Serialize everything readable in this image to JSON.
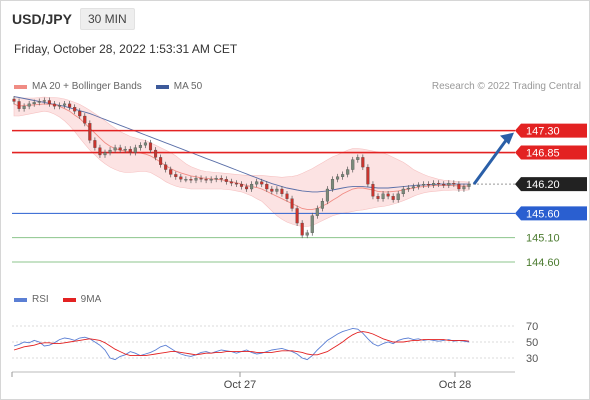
{
  "header": {
    "symbol": "USD/JPY",
    "timeframe": "30 MIN",
    "datetime": "Friday, October 28, 2022 1:53:31 AM CET"
  },
  "legend_top": [
    {
      "label": "MA 20 + Bollinger Bands",
      "color": "#f08c84"
    },
    {
      "label": "MA 50",
      "color": "#3d5a9a"
    }
  ],
  "legend_bottom": [
    {
      "label": "RSI",
      "color": "#5b7fd4"
    },
    {
      "label": "9MA",
      "color": "#e32222"
    }
  ],
  "credit": "Research © 2022 Trading Central",
  "colors": {
    "resistance": "#e32222",
    "support": "#2a5fd0",
    "target": "#8cc48c",
    "arrow": "#2a5fa8",
    "up": "#7a8a7a",
    "down": "#c8342e"
  },
  "chart_data": [
    {
      "type": "candlestick",
      "title": "",
      "xlabel": "",
      "ylabel": "",
      "ylim": [
        144.25,
        147.95
      ],
      "x_tick_labels": [
        "Oct 27",
        "Oct 28"
      ],
      "levels": [
        {
          "label": "147.30",
          "value": 147.3,
          "kind": "resistance"
        },
        {
          "label": "146.85",
          "value": 146.85,
          "kind": "resistance"
        },
        {
          "label": "146.20",
          "value": 146.2,
          "kind": "current"
        },
        {
          "label": "145.60",
          "value": 145.6,
          "kind": "support"
        },
        {
          "label": "145.10",
          "value": 145.1,
          "kind": "target"
        },
        {
          "label": "144.60",
          "value": 144.6,
          "kind": "target"
        }
      ],
      "forecast_arrow": {
        "from": 146.2,
        "to": 147.3
      },
      "closes": [
        147.9,
        147.75,
        147.8,
        147.85,
        147.88,
        147.9,
        147.92,
        147.85,
        147.8,
        147.82,
        147.85,
        147.78,
        147.7,
        147.6,
        147.45,
        147.1,
        146.95,
        146.8,
        146.85,
        146.9,
        146.95,
        146.9,
        146.92,
        146.85,
        146.95,
        147.0,
        147.05,
        146.9,
        146.75,
        146.6,
        146.5,
        146.4,
        146.35,
        146.3,
        146.3,
        146.28,
        146.32,
        146.3,
        146.28,
        146.3,
        146.32,
        146.3,
        146.25,
        146.22,
        146.2,
        146.15,
        146.1,
        146.2,
        146.25,
        146.2,
        146.1,
        146.05,
        146.1,
        146.0,
        145.9,
        145.7,
        145.4,
        145.15,
        145.2,
        145.55,
        145.7,
        145.85,
        146.1,
        146.3,
        146.35,
        146.4,
        146.5,
        146.7,
        146.75,
        146.55,
        146.2,
        145.95,
        145.9,
        146.0,
        145.95,
        145.88,
        146.0,
        146.1,
        146.12,
        146.15,
        146.18,
        146.2,
        146.18,
        146.22,
        146.2,
        146.18,
        146.22,
        146.2,
        146.1,
        146.15,
        146.2
      ],
      "ma20": [
        147.85,
        147.8,
        147.82,
        147.82,
        147.83,
        147.84,
        147.85,
        147.84,
        147.83,
        147.8,
        147.75,
        147.7,
        147.62,
        147.55,
        147.45,
        147.35,
        147.25,
        147.15,
        147.05,
        146.98,
        146.93,
        146.9,
        146.88,
        146.86,
        146.85,
        146.84,
        146.82,
        146.78,
        146.72,
        146.65,
        146.58,
        146.52,
        146.47,
        146.43,
        146.4,
        146.37,
        146.35,
        146.33,
        146.32,
        146.31,
        146.3,
        146.29,
        146.27,
        146.25,
        146.23,
        146.2,
        146.17,
        146.15,
        146.13,
        146.1,
        146.05,
        146.0,
        145.95,
        145.9,
        145.85,
        145.8,
        145.75,
        145.7,
        145.68,
        145.68,
        145.7,
        145.75,
        145.8,
        145.87,
        145.93,
        146.0,
        146.05,
        146.1,
        146.12,
        146.12,
        146.1,
        146.08,
        146.05,
        146.04,
        146.04,
        146.05,
        146.06,
        146.08,
        146.1,
        146.12,
        146.14,
        146.15,
        146.16,
        146.17,
        146.17,
        146.17,
        146.17,
        146.17,
        146.16,
        146.16,
        146.16
      ],
      "bb_upper": [
        148.0,
        147.98,
        147.97,
        147.97,
        147.97,
        147.98,
        147.99,
        147.98,
        147.98,
        147.97,
        147.95,
        147.92,
        147.88,
        147.84,
        147.78,
        147.72,
        147.65,
        147.58,
        147.5,
        147.42,
        147.35,
        147.28,
        147.23,
        147.18,
        147.15,
        147.12,
        147.1,
        147.05,
        147.0,
        146.95,
        146.9,
        146.85,
        146.78,
        146.7,
        146.62,
        146.56,
        146.52,
        146.48,
        146.46,
        146.45,
        146.44,
        146.43,
        146.42,
        146.41,
        146.4,
        146.39,
        146.38,
        146.38,
        146.38,
        146.38,
        146.37,
        146.36,
        146.35,
        146.34,
        146.35,
        146.36,
        146.38,
        146.42,
        146.47,
        146.52,
        146.58,
        146.64,
        146.7,
        146.76,
        146.8,
        146.85,
        146.9,
        146.93,
        146.93,
        146.92,
        146.9,
        146.88,
        146.86,
        146.84,
        146.8,
        146.75,
        146.7,
        146.65,
        146.58,
        146.5,
        146.45,
        146.4,
        146.36,
        146.33,
        146.3,
        146.28,
        146.27,
        146.26,
        146.25,
        146.25,
        146.24
      ],
      "bb_lower": [
        147.6,
        147.6,
        147.62,
        147.64,
        147.66,
        147.68,
        147.7,
        147.68,
        147.64,
        147.58,
        147.5,
        147.4,
        147.28,
        147.15,
        147.02,
        146.9,
        146.8,
        146.7,
        146.62,
        146.55,
        146.5,
        146.46,
        146.44,
        146.44,
        146.45,
        146.46,
        146.46,
        146.44,
        146.38,
        146.32,
        146.25,
        146.2,
        146.16,
        146.13,
        146.12,
        146.1,
        146.1,
        146.1,
        146.1,
        146.1,
        146.1,
        146.1,
        146.09,
        146.08,
        146.06,
        146.04,
        146.0,
        145.96,
        145.9,
        145.85,
        145.75,
        145.65,
        145.55,
        145.48,
        145.42,
        145.38,
        145.35,
        145.33,
        145.33,
        145.35,
        145.4,
        145.45,
        145.5,
        145.55,
        145.58,
        145.6,
        145.62,
        145.64,
        145.66,
        145.67,
        145.69,
        145.71,
        145.73,
        145.74,
        145.76,
        145.79,
        145.82,
        145.86,
        145.9,
        145.95,
        145.99,
        146.02,
        146.04,
        146.05,
        146.06,
        146.07,
        146.07,
        146.08,
        146.07,
        146.07,
        146.08
      ],
      "ma50": [
        148.0,
        147.98,
        147.96,
        147.94,
        147.92,
        147.9,
        147.88,
        147.86,
        147.84,
        147.82,
        147.8,
        147.77,
        147.74,
        147.71,
        147.68,
        147.65,
        147.61,
        147.57,
        147.53,
        147.49,
        147.45,
        147.41,
        147.37,
        147.33,
        147.29,
        147.25,
        147.21,
        147.17,
        147.13,
        147.09,
        147.05,
        147.01,
        146.97,
        146.93,
        146.89,
        146.85,
        146.81,
        146.77,
        146.73,
        146.69,
        146.65,
        146.61,
        146.57,
        146.53,
        146.49,
        146.45,
        146.41,
        146.37,
        146.33,
        146.29,
        146.25,
        146.21,
        146.18,
        146.15,
        146.12,
        146.1,
        146.08,
        146.06,
        146.05,
        146.04,
        146.04,
        146.05,
        146.06,
        146.08,
        146.1,
        146.12,
        146.14,
        146.15,
        146.15,
        146.15,
        146.14,
        146.13,
        146.12,
        146.12,
        146.12,
        146.13,
        146.14,
        146.15,
        146.16,
        146.17,
        146.18,
        146.18,
        146.19,
        146.19,
        146.2,
        146.2,
        146.2,
        146.2,
        146.2,
        146.2,
        146.2
      ]
    },
    {
      "type": "line",
      "title": "",
      "xlabel": "",
      "ylabel": "",
      "ylim": [
        15,
        85
      ],
      "y_tick_labels": [
        "70",
        "50",
        "30"
      ],
      "x_tick_labels": [
        "Oct 27",
        "Oct 28"
      ],
      "series": [
        {
          "name": "RSI",
          "values": [
            45,
            47,
            50,
            49,
            52,
            50,
            45,
            46,
            49,
            53,
            55,
            54,
            52,
            55,
            56,
            54,
            50,
            46,
            40,
            30,
            28,
            32,
            34,
            38,
            36,
            33,
            35,
            37,
            40,
            44,
            46,
            42,
            38,
            35,
            33,
            32,
            34,
            37,
            38,
            36,
            38,
            40,
            39,
            38,
            36,
            38,
            40,
            37,
            35,
            36,
            38,
            40,
            41,
            42,
            40,
            38,
            35,
            30,
            28,
            33,
            40,
            46,
            52,
            56,
            60,
            63,
            65,
            67,
            66,
            61,
            54,
            48,
            45,
            48,
            50,
            48,
            52,
            54,
            55,
            53,
            54,
            52,
            53,
            52,
            51,
            52,
            53,
            51,
            52,
            51,
            50
          ]
        },
        {
          "name": "9MA",
          "values": [
            40,
            42,
            44,
            45,
            46,
            48,
            49,
            49,
            48,
            48,
            49,
            50,
            51,
            52,
            53,
            54,
            53,
            52,
            49,
            45,
            41,
            38,
            35,
            33,
            33,
            33,
            33,
            34,
            35,
            36,
            37,
            38,
            38,
            37,
            36,
            35,
            34,
            35,
            36,
            36,
            37,
            37,
            38,
            38,
            38,
            38,
            38,
            38,
            37,
            37,
            37,
            37,
            38,
            39,
            39,
            39,
            38,
            37,
            35,
            34,
            34,
            36,
            38,
            42,
            46,
            50,
            55,
            59,
            62,
            63,
            62,
            60,
            57,
            54,
            52,
            50,
            50,
            50,
            51,
            52,
            52,
            53,
            53,
            53,
            53,
            53,
            52,
            52,
            52,
            52,
            51
          ]
        }
      ]
    }
  ]
}
